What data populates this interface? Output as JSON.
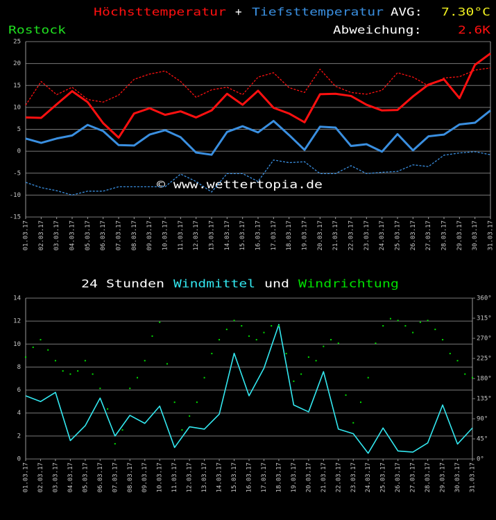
{
  "chart_data": [
    {
      "type": "line",
      "header": {
        "plus": "+",
        "avg_label": "AVG:",
        "avg_value": "7.30°C",
        "station": "Rostock",
        "deviation_label": "Abweichung:",
        "deviation_value": "2.6K"
      },
      "watermark": "© www.wettertopia.de",
      "categories": [
        "01.03.17",
        "02.03.17",
        "03.03.17",
        "04.03.17",
        "05.03.17",
        "06.03.17",
        "07.03.17",
        "08.03.17",
        "09.03.17",
        "10.03.17",
        "11.03.17",
        "12.03.17",
        "13.03.17",
        "14.03.17",
        "15.03.17",
        "16.03.17",
        "17.03.17",
        "18.03.17",
        "19.03.17",
        "20.03.17",
        "21.03.17",
        "22.03.17",
        "23.03.17",
        "24.03.17",
        "25.03.17",
        "26.03.17",
        "27.03.17",
        "28.03.17",
        "29.03.17",
        "30.03.17",
        "31.03.17"
      ],
      "series": [
        {
          "name": "Höchsttemperatur",
          "color": "#ff1010",
          "values": [
            7.7,
            7.6,
            10.7,
            13.7,
            11.2,
            6.4,
            3.1,
            8.6,
            9.8,
            8.3,
            9.1,
            7.7,
            9.3,
            13.1,
            10.6,
            13.8,
            9.9,
            8.6,
            6.6,
            13.0,
            13.1,
            12.6,
            10.6,
            9.3,
            9.4,
            12.5,
            15.2,
            16.4,
            12.1,
            19.7,
            22.3
          ]
        },
        {
          "name": "Tiefsttemperatur",
          "color": "#3a8fe0",
          "values": [
            2.9,
            1.9,
            2.9,
            3.6,
            6.0,
            4.6,
            1.4,
            1.3,
            3.8,
            4.8,
            3.2,
            -0.3,
            -0.8,
            4.4,
            5.7,
            4.3,
            6.9,
            3.7,
            0.3,
            5.6,
            5.4,
            1.2,
            1.6,
            -0.1,
            3.9,
            0.2,
            3.4,
            3.8,
            6.1,
            6.5,
            9.3
          ]
        },
        {
          "color": "#ff1010",
          "dashed": true,
          "values": [
            10.5,
            15.9,
            12.9,
            14.6,
            11.8,
            11.2,
            12.8,
            16.4,
            17.6,
            18.3,
            15.9,
            12.3,
            14.0,
            14.6,
            12.9,
            16.9,
            17.9,
            14.5,
            13.4,
            18.7,
            14.8,
            13.4,
            13.0,
            13.9,
            17.9,
            16.9,
            14.9,
            16.7,
            17.0,
            18.5,
            19.0
          ]
        },
        {
          "color": "#3a8fe0",
          "dashed": true,
          "values": [
            -7.1,
            -8.3,
            -9.0,
            -10.0,
            -9.1,
            -9.1,
            -8.1,
            -8.1,
            -8.1,
            -8.1,
            -5.2,
            -6.9,
            -9.3,
            -5.1,
            -5.1,
            -6.9,
            -2.0,
            -2.6,
            -2.4,
            -5.1,
            -5.1,
            -3.3,
            -5.1,
            -4.8,
            -4.6,
            -3.1,
            -3.5,
            -0.9,
            -0.4,
            -0.1,
            -0.8
          ]
        }
      ],
      "ylim": [
        -15,
        25
      ],
      "yticks": [
        -15,
        -10,
        -5,
        0,
        5,
        10,
        15,
        20,
        25
      ],
      "grid": true
    },
    {
      "type": "line",
      "title_prefix": "24 Stunden",
      "title_joiner": "und",
      "categories": [
        "01.03.17",
        "02.03.17",
        "03.03.17",
        "04.03.17",
        "05.03.17",
        "06.03.17",
        "07.03.17",
        "08.03.17",
        "09.03.17",
        "10.03.17",
        "11.03.17",
        "12.03.17",
        "13.03.17",
        "14.03.17",
        "15.03.17",
        "16.03.17",
        "17.03.17",
        "18.03.17",
        "19.03.17",
        "20.03.17",
        "21.03.17",
        "22.03.17",
        "23.03.17",
        "24.03.17",
        "25.03.17",
        "26.03.17",
        "27.03.17",
        "28.03.17",
        "29.03.17",
        "30.03.17",
        "31.03.17"
      ],
      "xlim": [
        1,
        31
      ],
      "series": [
        {
          "name": "Windmittel",
          "color": "#33e8f0",
          "values": [
            5.5,
            5.0,
            5.8,
            1.6,
            2.9,
            5.3,
            2.0,
            3.8,
            3.1,
            4.6,
            1.0,
            2.8,
            2.6,
            3.9,
            9.2,
            5.5,
            7.9,
            11.7,
            4.7,
            4.1,
            7.6,
            2.6,
            2.2,
            0.5,
            2.7,
            0.7,
            0.6,
            1.4,
            4.7,
            1.3,
            2.7
          ]
        },
        {
          "name": "Windrichtung",
          "color": "#00e000",
          "type": "scatter",
          "axis": "y2",
          "x": [
            1,
            1.5,
            2,
            2.5,
            3,
            3.5,
            4,
            4.5,
            5,
            5.5,
            6,
            6.5,
            7,
            7.5,
            8,
            8.5,
            9,
            9.5,
            10,
            10.5,
            11,
            11.5,
            12,
            12.5,
            13,
            13.5,
            14,
            14.5,
            15,
            15.5,
            16,
            16.5,
            17,
            17.5,
            18,
            18.5,
            19,
            19.5,
            20,
            20.5,
            21,
            21.5,
            22,
            22.5,
            23,
            23.5,
            24,
            24.5,
            25,
            25.5,
            26,
            26.5,
            27,
            27.5,
            28,
            28.5,
            29,
            29.5,
            30,
            30.5,
            31
          ],
          "values": [
            228,
            250,
            267,
            244,
            220,
            197,
            190,
            197,
            220,
            190,
            158,
            112,
            34,
            65,
            158,
            182,
            220,
            275,
            306,
            213,
            127,
            65,
            96,
            127,
            182,
            236,
            267,
            290,
            310,
            298,
            275,
            267,
            283,
            298,
            298,
            236,
            174,
            190,
            228,
            220,
            252,
            267,
            259,
            143,
            81,
            127,
            182,
            259,
            298,
            314,
            310,
            298,
            283,
            306,
            310,
            290,
            267,
            236,
            220,
            190,
            182
          ]
        }
      ],
      "ylim": [
        0,
        14
      ],
      "yticks": [
        0,
        2,
        4,
        6,
        8,
        10,
        12,
        14
      ],
      "y2lim": [
        0,
        360
      ],
      "y2ticks": [
        {
          "value": 0,
          "label": "0°"
        },
        {
          "value": 45,
          "label": "45°"
        },
        {
          "value": 90,
          "label": "90°"
        },
        {
          "value": 135,
          "label": "135°"
        },
        {
          "value": 180,
          "label": "180°"
        },
        {
          "value": 225,
          "label": "225°"
        },
        {
          "value": 270,
          "label": "270°"
        },
        {
          "value": 315,
          "label": "315°"
        },
        {
          "value": 360,
          "label": "360°"
        }
      ],
      "grid": true
    }
  ]
}
